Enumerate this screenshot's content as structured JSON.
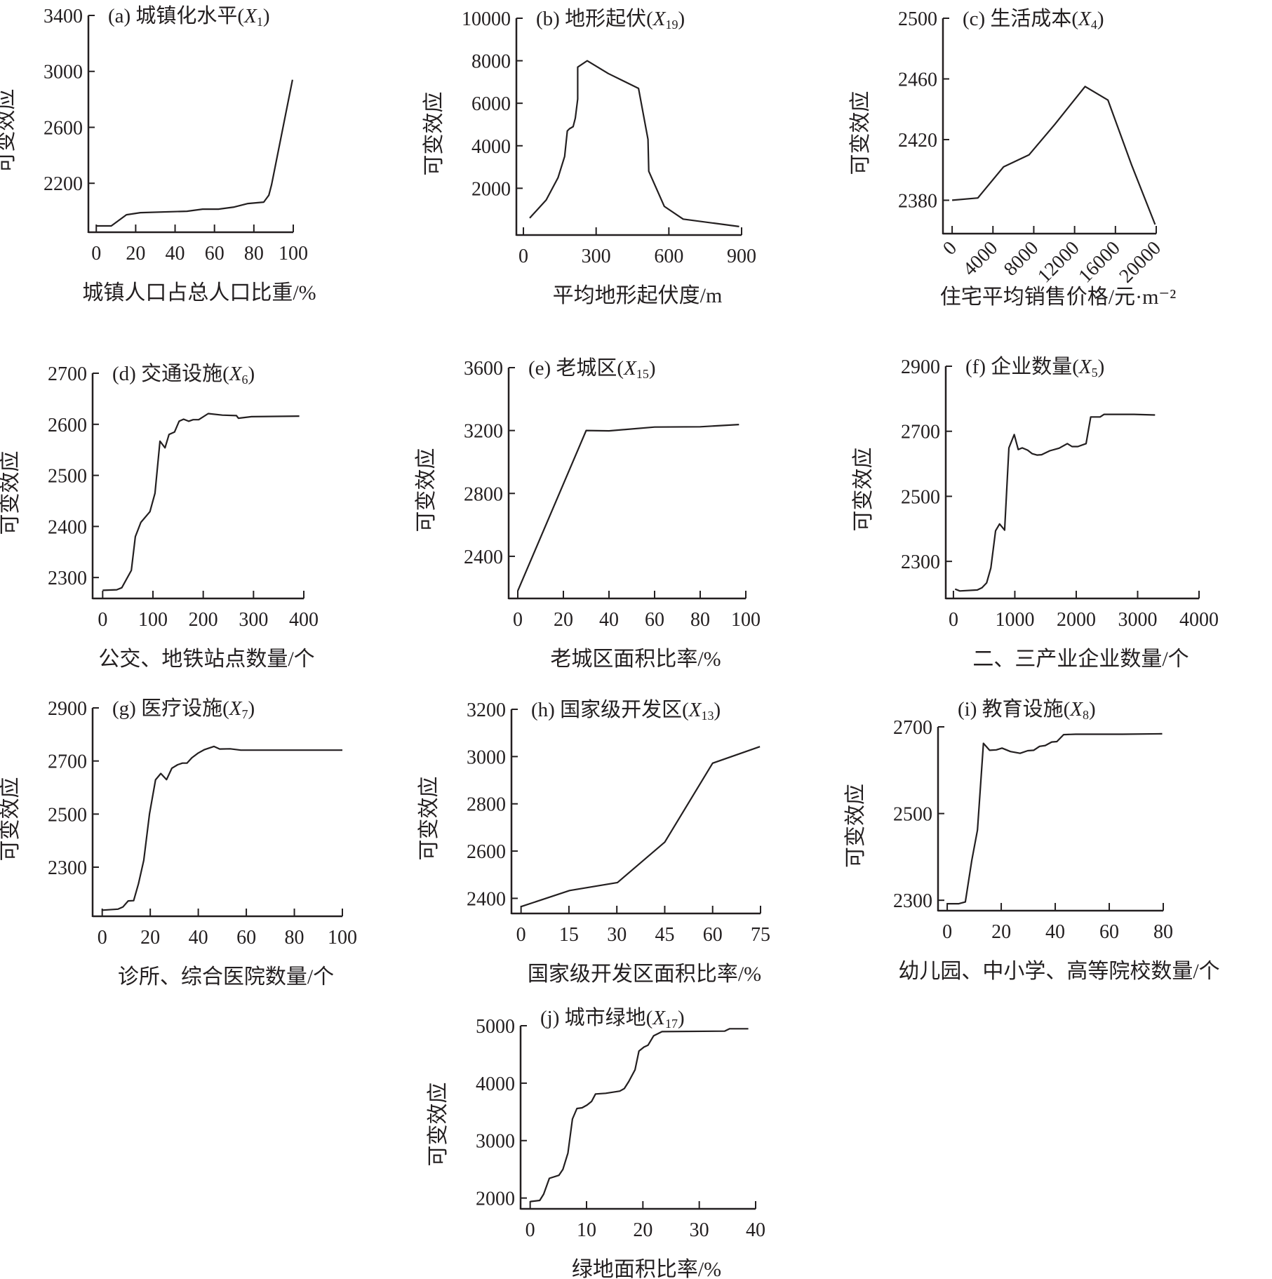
{
  "chart_data": [
    {
      "id": "a",
      "type": "line",
      "title": "(a) 城镇化水平(",
      "title_var": "X",
      "title_sub": "1",
      "title_end": ")",
      "ylabel": "可变效应",
      "xlabel": "城镇人口占总人口比重/%",
      "xticks": [
        0,
        20,
        40,
        60,
        80,
        100
      ],
      "yticks": [
        2200,
        2600,
        3000,
        3400
      ],
      "xlim": [
        -4,
        100
      ],
      "ylim": [
        1850,
        3400
      ],
      "points": [
        [
          0,
          1895
        ],
        [
          7.6,
          1895
        ],
        [
          15.3,
          1975
        ],
        [
          22.4,
          1990
        ],
        [
          46,
          2000
        ],
        [
          54,
          2015
        ],
        [
          62,
          2015
        ],
        [
          70,
          2030
        ],
        [
          77,
          2055
        ],
        [
          85,
          2065
        ],
        [
          87.6,
          2115
        ],
        [
          89,
          2190
        ],
        [
          99.6,
          2940
        ]
      ]
    },
    {
      "id": "b",
      "type": "line",
      "title": "(b) 地形起伏(",
      "title_var": "X",
      "title_sub": "19",
      "title_end": ")",
      "ylabel": "可变效应",
      "xlabel": "平均地形起伏度/m",
      "xticks": [
        0,
        300,
        600,
        900
      ],
      "yticks": [
        2000,
        4000,
        6000,
        8000,
        10000
      ],
      "xlim": [
        -29,
        900
      ],
      "ylim": [
        -200,
        10000
      ],
      "points": [
        [
          26,
          600
        ],
        [
          94,
          1450
        ],
        [
          143,
          2500
        ],
        [
          170,
          3500
        ],
        [
          181,
          4700
        ],
        [
          190,
          4800
        ],
        [
          205,
          4900
        ],
        [
          214,
          5300
        ],
        [
          224,
          6200
        ],
        [
          224,
          7700
        ],
        [
          263,
          8000
        ],
        [
          350,
          7400
        ],
        [
          475,
          6700
        ],
        [
          514,
          4300
        ],
        [
          517,
          2800
        ],
        [
          581,
          1150
        ],
        [
          659,
          550
        ],
        [
          890,
          200
        ]
      ]
    },
    {
      "id": "c",
      "type": "line",
      "title": "(c) 生活成本(",
      "title_var": "X",
      "title_sub": "4",
      "title_end": ")",
      "ylabel": "可变效应",
      "xlabel": "住宅平均销售价格/元·m⁻²",
      "xticks": [
        0,
        4000,
        8000,
        12000,
        16000,
        20000
      ],
      "yticks": [
        2380,
        2420,
        2460,
        2500
      ],
      "xlim": [
        -900,
        20000
      ],
      "ylim": [
        2358,
        2500
      ],
      "points": [
        [
          0,
          2380
        ],
        [
          2515,
          2381.5
        ],
        [
          5030,
          2402
        ],
        [
          7540,
          2410
        ],
        [
          10060,
          2430
        ],
        [
          13030,
          2455
        ],
        [
          15270,
          2446
        ],
        [
          17600,
          2403
        ],
        [
          19890,
          2364
        ]
      ]
    },
    {
      "id": "d",
      "type": "line",
      "title": "(d) 交通设施(",
      "title_var": "X",
      "title_sub": "6",
      "title_end": ")",
      "ylabel": "可变效应",
      "xlabel": "公交、地铁站点数量/个",
      "xticks": [
        0,
        100,
        200,
        300,
        400
      ],
      "yticks": [
        2300,
        2400,
        2500,
        2600,
        2700
      ],
      "xlim": [
        -20,
        400
      ],
      "ylim": [
        2259,
        2700
      ],
      "points": [
        [
          0,
          2275
        ],
        [
          28,
          2276
        ],
        [
          38,
          2280
        ],
        [
          57,
          2314
        ],
        [
          65,
          2380
        ],
        [
          76,
          2408
        ],
        [
          94,
          2429
        ],
        [
          104,
          2465
        ],
        [
          114,
          2567
        ],
        [
          124,
          2554
        ],
        [
          132,
          2580
        ],
        [
          143,
          2585
        ],
        [
          152,
          2606
        ],
        [
          161,
          2610
        ],
        [
          171,
          2606
        ],
        [
          180,
          2609
        ],
        [
          191,
          2609
        ],
        [
          210,
          2621
        ],
        [
          238,
          2618
        ],
        [
          266,
          2617
        ],
        [
          270,
          2612
        ],
        [
          296,
          2615
        ],
        [
          391,
          2616
        ]
      ]
    },
    {
      "id": "e",
      "type": "line",
      "title": "(e) 老城区(",
      "title_var": "X",
      "title_sub": "15",
      "title_end": ")",
      "ylabel": "可变效应",
      "xlabel": "老城区面积比率/%",
      "xticks": [
        0,
        20,
        40,
        60,
        80,
        100
      ],
      "yticks": [
        2400,
        2800,
        3200,
        3600
      ],
      "xlim": [
        -4,
        100
      ],
      "ylim": [
        2132,
        3600
      ],
      "points": [
        [
          0,
          2180
        ],
        [
          30,
          3200
        ],
        [
          40,
          3198
        ],
        [
          60,
          3222
        ],
        [
          80,
          3224
        ],
        [
          97,
          3238
        ]
      ]
    },
    {
      "id": "f",
      "type": "line",
      "title": "(f) 企业数量(",
      "title_var": "X",
      "title_sub": "5",
      "title_end": ")",
      "ylabel": "可变效应",
      "xlabel": "二、三产业企业数量/个",
      "xticks": [
        0,
        1000,
        2000,
        3000,
        4000
      ],
      "yticks": [
        2300,
        2500,
        2700,
        2900
      ],
      "xlim": [
        -125,
        4000
      ],
      "ylim": [
        2186,
        2900
      ],
      "points": [
        [
          27,
          2215
        ],
        [
          103,
          2209
        ],
        [
          389,
          2212
        ],
        [
          465,
          2219
        ],
        [
          541,
          2234
        ],
        [
          610,
          2280
        ],
        [
          686,
          2394
        ],
        [
          751,
          2415
        ],
        [
          834,
          2396
        ],
        [
          903,
          2649
        ],
        [
          990,
          2690
        ],
        [
          1055,
          2644
        ],
        [
          1120,
          2649
        ],
        [
          1208,
          2642
        ],
        [
          1284,
          2631
        ],
        [
          1360,
          2627
        ],
        [
          1436,
          2628
        ],
        [
          1570,
          2640
        ],
        [
          1722,
          2648
        ],
        [
          1855,
          2662
        ],
        [
          1932,
          2653
        ],
        [
          2027,
          2653
        ],
        [
          2160,
          2662
        ],
        [
          2236,
          2744
        ],
        [
          2389,
          2744
        ],
        [
          2454,
          2752
        ],
        [
          2941,
          2752
        ],
        [
          3284,
          2750
        ]
      ]
    },
    {
      "id": "g",
      "type": "line",
      "title": "(g) 医疗设施(",
      "title_var": "X",
      "title_sub": "7",
      "title_end": ")",
      "ylabel": "可变效应",
      "xlabel": "诊所、综合医院数量/个",
      "xticks": [
        0,
        20,
        40,
        60,
        80,
        100
      ],
      "yticks": [
        2300,
        2500,
        2700,
        2900
      ],
      "xlim": [
        -4,
        100
      ],
      "ylim": [
        2115,
        2900
      ],
      "points": [
        [
          0,
          2138
        ],
        [
          6.6,
          2142
        ],
        [
          8.6,
          2150
        ],
        [
          10.8,
          2173
        ],
        [
          13.1,
          2174
        ],
        [
          15.1,
          2238
        ],
        [
          17.3,
          2326
        ],
        [
          19.7,
          2501
        ],
        [
          22.2,
          2629
        ],
        [
          24.4,
          2653
        ],
        [
          26.8,
          2630
        ],
        [
          29,
          2673
        ],
        [
          31.4,
          2686
        ],
        [
          33.4,
          2692
        ],
        [
          35.3,
          2692
        ],
        [
          37.3,
          2712
        ],
        [
          40,
          2730
        ],
        [
          42.6,
          2743
        ],
        [
          46.5,
          2755
        ],
        [
          48.9,
          2745
        ],
        [
          53.3,
          2746
        ],
        [
          57.7,
          2741
        ],
        [
          100,
          2741
        ]
      ]
    },
    {
      "id": "h",
      "type": "line",
      "title": "(h) 国家级开发区(",
      "title_var": "X",
      "title_sub": "13",
      "title_end": ")",
      "ylabel": "可变效应",
      "xlabel": "国家级开发区面积比率/%",
      "xticks": [
        0,
        15,
        30,
        45,
        60,
        75
      ],
      "yticks": [
        2400,
        2600,
        2800,
        3000,
        3200
      ],
      "xlim": [
        -3,
        75
      ],
      "ylim": [
        2336,
        3200
      ],
      "points": [
        [
          0,
          2365
        ],
        [
          15.2,
          2433
        ],
        [
          30.2,
          2467
        ],
        [
          45,
          2638
        ],
        [
          60,
          2972
        ],
        [
          74.8,
          3042
        ]
      ]
    },
    {
      "id": "i",
      "type": "line",
      "title": "(i) 教育设施(",
      "title_var": "X",
      "title_sub": "8",
      "title_end": ")",
      "ylabel": "可变效应",
      "xlabel": "幼儿园、中小学、高等院校数量/个",
      "xticks": [
        0,
        20,
        40,
        60,
        80
      ],
      "yticks": [
        2300,
        2500,
        2700
      ],
      "xlim": [
        -3.4,
        80
      ],
      "ylim": [
        2276,
        2700
      ],
      "points": [
        [
          0,
          2292
        ],
        [
          4.3,
          2292
        ],
        [
          6.7,
          2296
        ],
        [
          9.1,
          2392
        ],
        [
          11.2,
          2462
        ],
        [
          13.4,
          2662
        ],
        [
          15.7,
          2646
        ],
        [
          18.2,
          2647
        ],
        [
          20.3,
          2651
        ],
        [
          23.4,
          2643
        ],
        [
          27,
          2639
        ],
        [
          29.8,
          2645
        ],
        [
          32,
          2646
        ],
        [
          34.2,
          2655
        ],
        [
          36.3,
          2657
        ],
        [
          38.7,
          2665
        ],
        [
          40.6,
          2666
        ],
        [
          43.1,
          2682
        ],
        [
          47.6,
          2683
        ],
        [
          64.9,
          2683
        ],
        [
          79.6,
          2684
        ]
      ]
    },
    {
      "id": "j",
      "type": "line",
      "title": "(j) 城市绿地(",
      "title_var": "X",
      "title_sub": "17",
      "title_end": ")",
      "ylabel": "可变效应",
      "xlabel": "绿地面积比率/%",
      "xticks": [
        0,
        10,
        20,
        30,
        40
      ],
      "yticks": [
        2000,
        3000,
        4000,
        5000
      ],
      "xlim": [
        -1.7,
        40
      ],
      "ylim": [
        1812,
        5000
      ],
      "points": [
        [
          0,
          1939
        ],
        [
          1.7,
          1959
        ],
        [
          2.4,
          2069
        ],
        [
          3.4,
          2343
        ],
        [
          5.1,
          2396
        ],
        [
          5.8,
          2498
        ],
        [
          6.7,
          2784
        ],
        [
          7.5,
          3376
        ],
        [
          8.3,
          3559
        ],
        [
          9.2,
          3571
        ],
        [
          10.1,
          3620
        ],
        [
          10.9,
          3682
        ],
        [
          11.6,
          3812
        ],
        [
          13.4,
          3824
        ],
        [
          15.9,
          3861
        ],
        [
          16.7,
          3906
        ],
        [
          17.5,
          4029
        ],
        [
          18.6,
          4233
        ],
        [
          19.3,
          4559
        ],
        [
          20.2,
          4629
        ],
        [
          20.9,
          4661
        ],
        [
          21.9,
          4824
        ],
        [
          23.4,
          4898
        ],
        [
          34.5,
          4906
        ],
        [
          35.4,
          4947
        ],
        [
          38.7,
          4947
        ]
      ]
    }
  ],
  "colors": {
    "line": "#231f20",
    "background": "#ffffff"
  }
}
